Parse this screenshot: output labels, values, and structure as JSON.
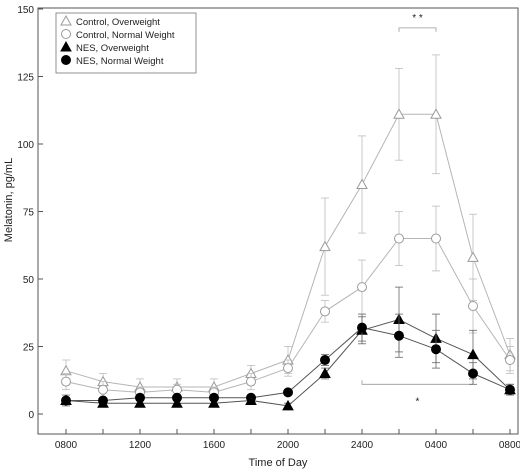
{
  "chart_data": {
    "type": "line",
    "xlabel": "Time of Day",
    "ylabel": "Melatonin, pg/mL",
    "x_ticks": [
      "0800",
      "1000",
      "1200",
      "1400",
      "1600",
      "1800",
      "2000",
      "2200",
      "2400",
      "0200",
      "0400",
      "0600",
      "0800"
    ],
    "x_tick_labels": [
      "0800",
      "1200",
      "1600",
      "2000",
      "2400",
      "0400",
      "0800"
    ],
    "x_tick_label_indices": [
      0,
      2,
      4,
      6,
      8,
      10,
      12
    ],
    "y_ticks": [
      0,
      25,
      50,
      75,
      100,
      125,
      150
    ],
    "ylim": [
      0,
      150
    ],
    "grid": false,
    "legend_position": "top-left",
    "series": [
      {
        "name": "Control, Overweight",
        "marker": "open-triangle",
        "color": "#9a9a9a",
        "values": [
          16,
          12,
          10,
          10,
          10,
          15,
          20,
          62,
          85,
          111,
          111,
          58,
          22
        ],
        "errors": [
          4,
          3,
          3,
          3,
          3,
          3,
          5,
          18,
          18,
          17,
          22,
          16,
          6
        ]
      },
      {
        "name": "Control, Normal Weight",
        "marker": "open-circle",
        "color": "#9a9a9a",
        "values": [
          12,
          9,
          8,
          9,
          8,
          12,
          17,
          38,
          47,
          65,
          65,
          40,
          20
        ],
        "errors": [
          3,
          3,
          2,
          2,
          2,
          3,
          3,
          4,
          10,
          10,
          12,
          10,
          5
        ]
      },
      {
        "name": "NES, Overweight",
        "marker": "filled-triangle",
        "color": "#000000",
        "values": [
          5,
          4,
          4,
          4,
          4,
          5,
          3,
          15,
          31,
          35,
          28,
          22,
          9
        ],
        "errors": [
          2,
          1,
          1,
          1,
          1,
          1,
          1,
          2,
          5,
          12,
          9,
          9,
          2
        ]
      },
      {
        "name": "NES, Normal Weight",
        "marker": "filled-circle",
        "color": "#000000",
        "values": [
          5,
          5,
          6,
          6,
          6,
          6,
          8,
          20,
          32,
          29,
          24,
          15,
          9
        ],
        "errors": [
          1,
          1,
          1,
          1,
          1,
          1,
          1,
          2,
          5,
          8,
          7,
          4,
          2
        ]
      }
    ],
    "annotations": [
      {
        "text": "* *",
        "x_index": 9.5,
        "y": 147
      },
      {
        "text": "*",
        "x_index": 9.5,
        "y": 5
      }
    ]
  }
}
